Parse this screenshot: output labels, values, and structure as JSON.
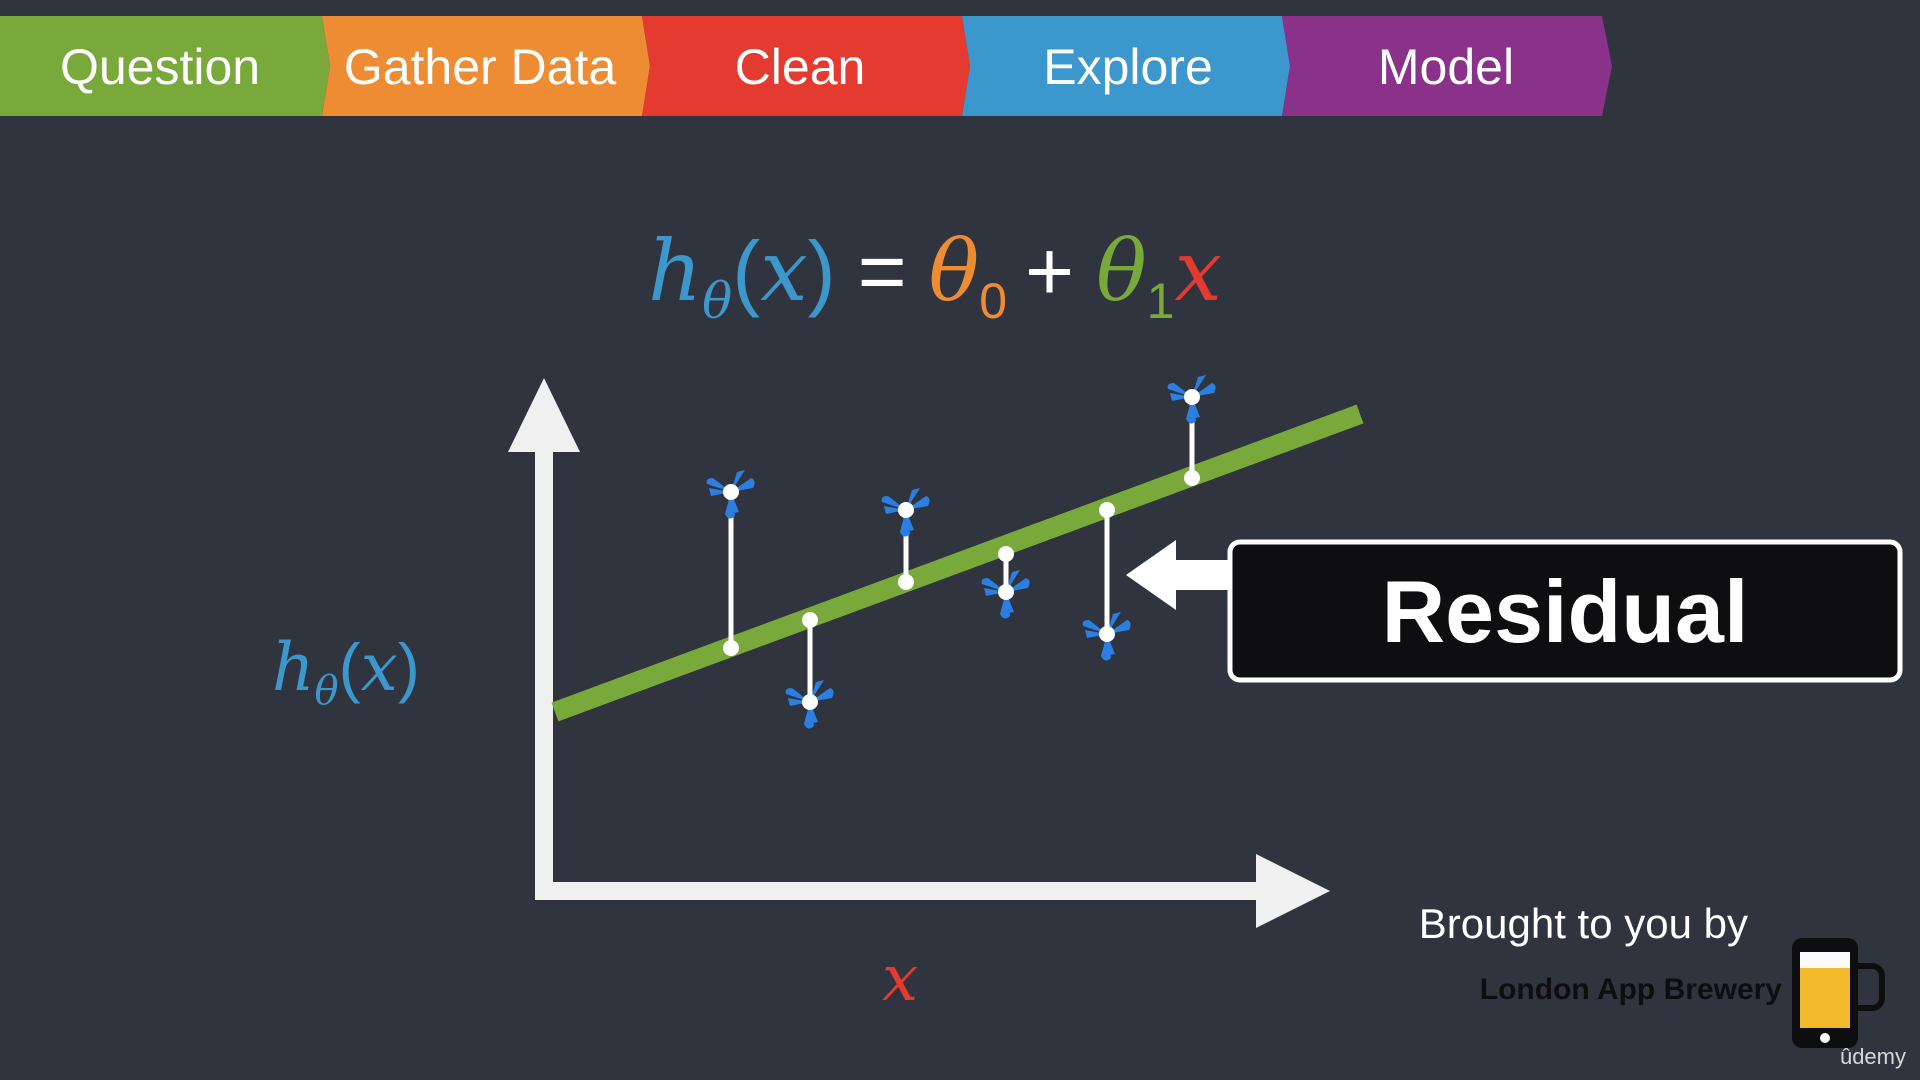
{
  "pipeline": {
    "stages": [
      {
        "label": "Question",
        "color": "#78a93a"
      },
      {
        "label": "Gather Data",
        "color": "#ee8c34"
      },
      {
        "label": "Clean",
        "color": "#e43a30"
      },
      {
        "label": "Explore",
        "color": "#3c97cc"
      },
      {
        "label": "Model",
        "color": "#8a3189"
      }
    ]
  },
  "formula": {
    "h": "h",
    "h_sub": "θ",
    "open_paren": "(",
    "x": "x",
    "close_paren": ")",
    "equals": "=",
    "theta0": "θ",
    "theta0_sub": "0",
    "plus": "+",
    "theta1": "θ",
    "theta1_sub": "1",
    "x2": "x",
    "colors": {
      "h": "#3c97cc",
      "theta0": "#ee8c34",
      "theta1": "#78a93a",
      "x": "#e43a30",
      "operators": "#ffffff"
    }
  },
  "diagram": {
    "y_axis_label": {
      "h": "h",
      "sub": "θ",
      "open": "(",
      "x": "x",
      "close": ")"
    },
    "x_axis_label": "x",
    "line_color": "#78a93a",
    "point_color": "#2a7fe0",
    "residual_color": "#ffffff",
    "point_icon": "windmill-icon"
  },
  "callout": {
    "label": "Residual",
    "arrow_icon": "arrow-left-icon"
  },
  "branding": {
    "brought_by": "Brought to you by",
    "company": "London App Brewery",
    "logo_icon": "beer-phone-icon",
    "platform": "ûdemy"
  }
}
